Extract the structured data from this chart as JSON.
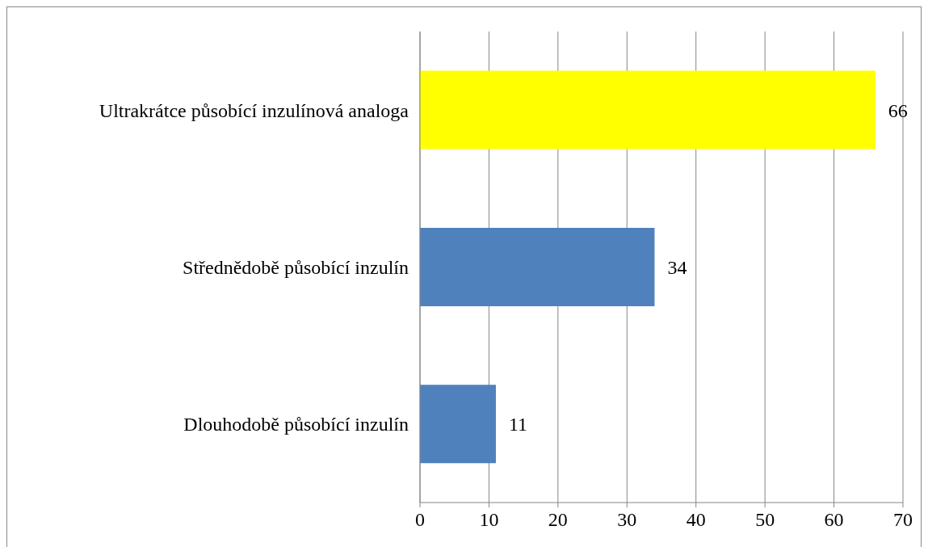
{
  "chart_data": {
    "type": "bar",
    "orientation": "horizontal",
    "categories": [
      "Ultrakrátce působící inzulínová analoga",
      "Střednědobě působící inzulín",
      "Dlouhodobě působící inzulín"
    ],
    "values": [
      66,
      34,
      11
    ],
    "colors": [
      "#ffff00",
      "#4f81bd",
      "#4f81bd"
    ],
    "xlim": [
      0,
      70
    ],
    "xticks": [
      0,
      10,
      20,
      30,
      40,
      50,
      60,
      70
    ],
    "grid": "x",
    "data_labels": true
  }
}
